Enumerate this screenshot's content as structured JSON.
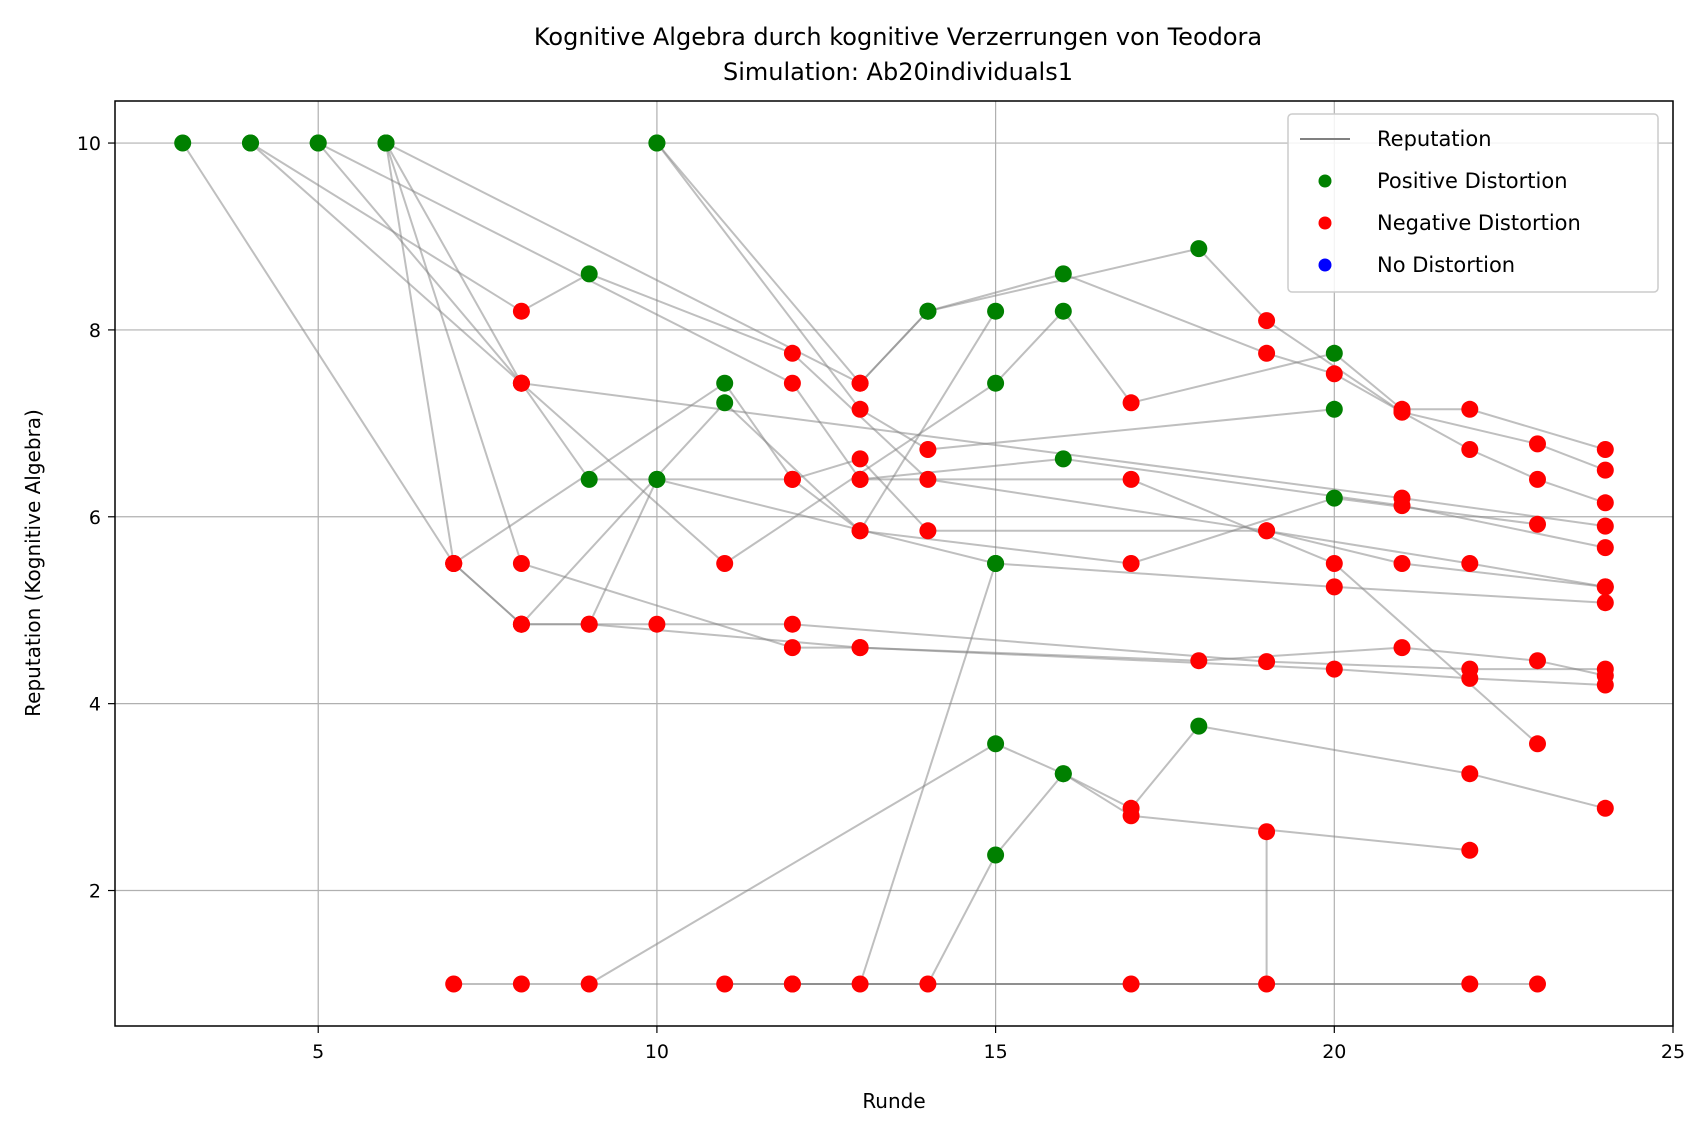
{
  "chart_data": {
    "type": "scatter",
    "title": "Kognitive Algebra durch kognitive Verzerrungen von Teodora",
    "subtitle": "Simulation: Ab20individuals1",
    "xlabel": "Runde",
    "ylabel": "Reputation (Kognitive Algebra)",
    "xlim": [
      2,
      25
    ],
    "ylim": [
      0.55,
      10.45
    ],
    "xticks": [
      5,
      10,
      15,
      20,
      25
    ],
    "yticks": [
      2,
      4,
      6,
      8,
      10
    ],
    "grid": true,
    "legend_position": "top-right",
    "legend": [
      {
        "label": "Reputation",
        "kind": "line",
        "color": "#808080"
      },
      {
        "label": "Positive Distortion",
        "kind": "marker",
        "color": "#008000"
      },
      {
        "label": "Negative Distortion",
        "kind": "marker",
        "color": "#ff0000"
      },
      {
        "label": "No Distortion",
        "kind": "marker",
        "color": "#0000ff"
      }
    ],
    "colors": {
      "positive": "#008000",
      "negative": "#ff0000",
      "none": "#0000ff",
      "line": "#808080"
    },
    "series": [
      {
        "points": [
          [
            3,
            10,
            "pos"
          ],
          [
            7,
            5.5,
            "neg"
          ],
          [
            8,
            4.85,
            "neg"
          ],
          [
            10,
            4.85,
            "neg"
          ],
          [
            12,
            4.85,
            "neg"
          ],
          [
            19,
            4.45,
            "neg"
          ],
          [
            22,
            4.37,
            "neg"
          ],
          [
            24,
            4.37,
            "neg"
          ]
        ]
      },
      {
        "points": [
          [
            4,
            10,
            "pos"
          ],
          [
            8,
            7.43,
            "neg"
          ],
          [
            9,
            6.4,
            "pos"
          ],
          [
            10,
            6.4,
            "pos"
          ],
          [
            15,
            5.5,
            "pos"
          ],
          [
            20,
            5.25,
            "neg"
          ],
          [
            24,
            5.08,
            "neg"
          ]
        ]
      },
      {
        "points": [
          [
            4,
            10,
            "pos"
          ],
          [
            8,
            8.2,
            "neg"
          ],
          [
            9,
            8.6,
            "pos"
          ],
          [
            12,
            7.75,
            "neg"
          ],
          [
            14,
            6.4,
            "neg"
          ],
          [
            19,
            5.85,
            "neg"
          ],
          [
            21,
            5.5,
            "neg"
          ],
          [
            24,
            5.25,
            "neg"
          ]
        ]
      },
      {
        "points": [
          [
            5,
            10,
            "pos"
          ],
          [
            8,
            7.43,
            "neg"
          ],
          [
            21,
            6.2,
            "neg"
          ],
          [
            24,
            5.9,
            "neg"
          ]
        ]
      },
      {
        "points": [
          [
            5,
            10,
            "pos"
          ],
          [
            12,
            7.43,
            "neg"
          ],
          [
            13,
            6.4,
            "neg"
          ],
          [
            16,
            6.62,
            "pos"
          ],
          [
            21,
            6.12,
            "neg"
          ],
          [
            24,
            5.67,
            "neg"
          ]
        ]
      },
      {
        "points": [
          [
            6,
            10,
            "pos"
          ],
          [
            7,
            5.5,
            "neg"
          ],
          [
            8,
            4.85,
            "neg"
          ],
          [
            9,
            4.85,
            "neg"
          ],
          [
            13,
            4.6,
            "neg"
          ],
          [
            20,
            4.37,
            "neg"
          ],
          [
            22,
            4.27,
            "neg"
          ],
          [
            24,
            4.2,
            "neg"
          ]
        ]
      },
      {
        "points": [
          [
            6,
            10,
            "pos"
          ],
          [
            8,
            5.5,
            "neg"
          ],
          [
            12,
            4.6,
            "neg"
          ],
          [
            13,
            4.6,
            "neg"
          ],
          [
            18,
            4.46,
            "neg"
          ],
          [
            21,
            4.6,
            "neg"
          ],
          [
            23,
            4.46,
            "neg"
          ],
          [
            24,
            4.3,
            "neg"
          ]
        ]
      },
      {
        "points": [
          [
            6,
            10,
            "pos"
          ],
          [
            13,
            7.43,
            "neg"
          ],
          [
            14,
            8.2,
            "pos"
          ],
          [
            16,
            8.6,
            "pos"
          ],
          [
            19,
            7.75,
            "neg"
          ],
          [
            20,
            7.53,
            "neg"
          ],
          [
            21,
            7.12,
            "neg"
          ],
          [
            22,
            6.72,
            "neg"
          ],
          [
            23,
            6.4,
            "neg"
          ],
          [
            24,
            6.15,
            "neg"
          ]
        ]
      },
      {
        "points": [
          [
            6,
            10,
            "pos"
          ],
          [
            8,
            7.43,
            "neg"
          ],
          [
            11,
            5.5,
            "neg"
          ],
          [
            15,
            7.43,
            "pos"
          ],
          [
            16,
            8.2,
            "pos"
          ],
          [
            17,
            7.22,
            "neg"
          ],
          [
            20,
            7.75,
            "pos"
          ],
          [
            21,
            7.15,
            "neg"
          ],
          [
            22,
            7.15,
            "neg"
          ],
          [
            24,
            6.72,
            "neg"
          ]
        ]
      },
      {
        "points": [
          [
            7,
            5.5,
            "neg"
          ],
          [
            11,
            7.43,
            "pos"
          ],
          [
            12,
            6.4,
            "neg"
          ],
          [
            13,
            5.85,
            "neg"
          ],
          [
            17,
            5.5,
            "neg"
          ],
          [
            20,
            6.2,
            "pos"
          ],
          [
            23,
            5.92,
            "neg"
          ]
        ]
      },
      {
        "points": [
          [
            10,
            10,
            "pos"
          ],
          [
            13,
            7.43,
            "neg"
          ],
          [
            14,
            8.2,
            "pos"
          ],
          [
            18,
            8.87,
            "pos"
          ],
          [
            19,
            8.1,
            "neg"
          ],
          [
            21,
            7.12,
            "neg"
          ],
          [
            23,
            6.78,
            "neg"
          ],
          [
            24,
            6.5,
            "neg"
          ]
        ]
      },
      {
        "points": [
          [
            10,
            10,
            "pos"
          ],
          [
            13,
            7.15,
            "neg"
          ],
          [
            14,
            6.72,
            "neg"
          ],
          [
            20,
            7.15,
            "pos"
          ]
        ]
      },
      {
        "points": [
          [
            8,
            4.85,
            "neg"
          ],
          [
            11,
            7.22,
            "pos"
          ],
          [
            13,
            5.85,
            "neg"
          ],
          [
            15,
            8.2,
            "pos"
          ]
        ]
      },
      {
        "points": [
          [
            9,
            4.85,
            "neg"
          ],
          [
            10,
            6.4,
            "pos"
          ],
          [
            12,
            6.4,
            "neg"
          ],
          [
            13,
            6.62,
            "neg"
          ],
          [
            14,
            5.85,
            "neg"
          ],
          [
            19,
            5.85,
            "neg"
          ],
          [
            22,
            5.5,
            "neg"
          ],
          [
            24,
            5.25,
            "neg"
          ]
        ]
      },
      {
        "points": [
          [
            13,
            6.4,
            "neg"
          ],
          [
            17,
            6.4,
            "neg"
          ],
          [
            20,
            5.5,
            "neg"
          ],
          [
            23,
            3.57,
            "neg"
          ]
        ]
      },
      {
        "points": [
          [
            7,
            1,
            "neg"
          ],
          [
            8,
            1,
            "neg"
          ],
          [
            23,
            1,
            "neg"
          ]
        ]
      },
      {
        "points": [
          [
            9,
            1,
            "neg"
          ],
          [
            15,
            3.57,
            "pos"
          ],
          [
            16,
            3.25,
            "pos"
          ],
          [
            17,
            2.8,
            "neg"
          ],
          [
            22,
            2.43,
            "neg"
          ]
        ]
      },
      {
        "points": [
          [
            11,
            1,
            "neg"
          ],
          [
            12,
            1,
            "neg"
          ],
          [
            22,
            1,
            "neg"
          ]
        ]
      },
      {
        "points": [
          [
            13,
            1,
            "neg"
          ],
          [
            15,
            5.5,
            "pos"
          ]
        ]
      },
      {
        "points": [
          [
            14,
            1,
            "neg"
          ],
          [
            15,
            2.38,
            "pos"
          ],
          [
            16,
            3.25,
            "pos"
          ],
          [
            17,
            2.88,
            "neg"
          ],
          [
            18,
            3.76,
            "pos"
          ],
          [
            22,
            3.25,
            "neg"
          ],
          [
            24,
            2.88,
            "neg"
          ]
        ]
      },
      {
        "points": [
          [
            12,
            1,
            "neg"
          ],
          [
            17,
            1,
            "neg"
          ],
          [
            19,
            1,
            "neg"
          ],
          [
            19,
            2.63,
            "neg"
          ]
        ]
      }
    ]
  }
}
